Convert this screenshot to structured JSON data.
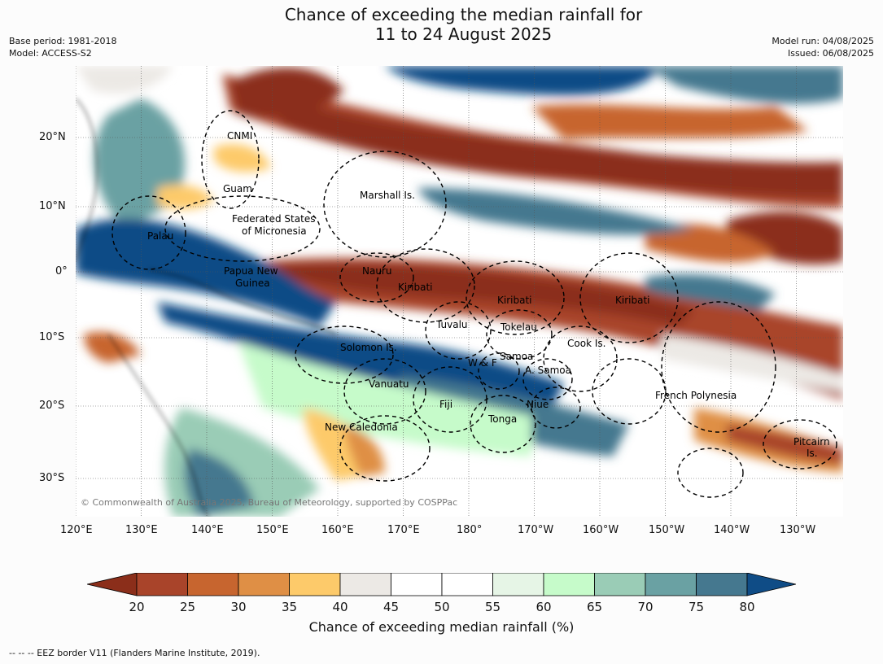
{
  "title": {
    "line1": "Chance of exceeding the median rainfall for",
    "line2": "11 to 24 August 2025"
  },
  "meta": {
    "base_period": "Base period: 1981-2018",
    "model": "Model: ACCESS-S2",
    "model_run": "Model run: 04/08/2025",
    "issued": "Issued: 06/08/2025"
  },
  "map": {
    "lat_labels": [
      "20°N",
      "10°N",
      "0°",
      "10°S",
      "20°S",
      "30°S"
    ],
    "lon_labels": [
      "120°E",
      "130°E",
      "140°E",
      "150°E",
      "160°E",
      "170°E",
      "180°",
      "170°W",
      "160°W",
      "150°W",
      "140°W",
      "130°W"
    ],
    "region_labels": {
      "cnmi": "CNMI",
      "guam": "Guam",
      "marshall": "Marshall Is.",
      "fsm_1": "Federated States",
      "fsm_2": "of Micronesia",
      "palau": "Palau",
      "png_1": "Papua New",
      "png_2": "Guinea",
      "nauru": "Nauru",
      "kiribati_w": "Kiribati",
      "kiribati_c": "Kiribati",
      "kiribati_e": "Kiribati",
      "tuvalu": "Tuvalu",
      "tokelau": "Tokelau",
      "cook": "Cook Is.",
      "solomon": "Solomon Is.",
      "samoa": "Samoa",
      "wf": "W & F",
      "asamoa": "A. Samoa",
      "vanuatu": "Vanuatu",
      "fiji": "Fiji",
      "niue": "Niue",
      "tonga": "Tonga",
      "newcal": "New Caledonia",
      "frpoly": "French Polynesia",
      "pitcairn_1": "Pitcairn",
      "pitcairn_2": "Is."
    },
    "copyright": "© Commonwealth of Australia 2025, Bureau of Meteorology, supported by COSPPac"
  },
  "colorbar": {
    "ticks": [
      "20",
      "25",
      "30",
      "35",
      "40",
      "45",
      "50",
      "55",
      "60",
      "65",
      "70",
      "75",
      "80"
    ],
    "label": "Chance of exceeding median rainfall (%)",
    "under_color": "#8b2e1a",
    "over_color": "#0f4c86",
    "colors": [
      "#a9442a",
      "#c7652f",
      "#df8f45",
      "#fdca6a",
      "#ece9e5",
      "#ffffff",
      "#ffffff",
      "#e6f5e6",
      "#c6fbca",
      "#9accb6",
      "#6aa1a3",
      "#45788f"
    ]
  },
  "footer": "--  --  -- EEZ border V11 (Flanders Marine Institute, 2019)."
}
